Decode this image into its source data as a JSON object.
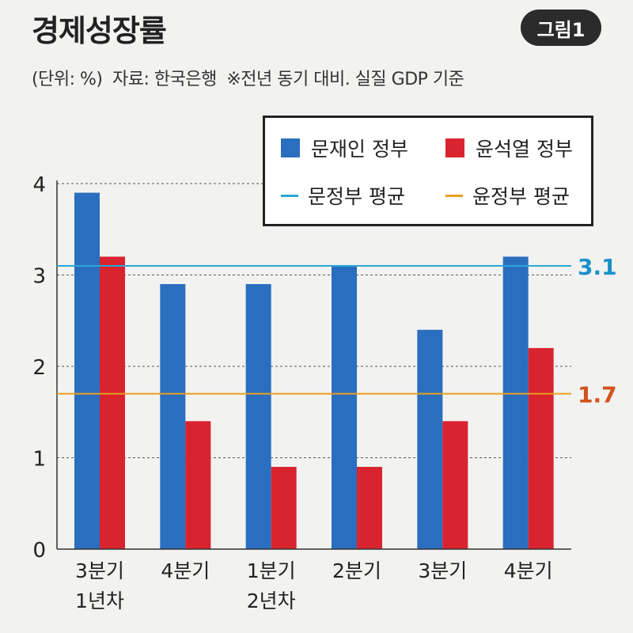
{
  "header": {
    "title": "경제성장률",
    "badge": "그림1",
    "unit_note": "(단위: %)",
    "source": "자료: 한국은행",
    "basis": "※전년 동기 대비. 실질 GDP 기준"
  },
  "colors": {
    "moon": "#2a6ebf",
    "yoon": "#d9232f",
    "moon_avg": "#2aa7d6",
    "yoon_avg": "#e8a020",
    "moon_avg_label": "#1a90c8",
    "yoon_avg_label": "#d2531c"
  },
  "chart_data": {
    "type": "bar",
    "categories": [
      [
        "3분기",
        "1년차"
      ],
      [
        "4분기"
      ],
      [
        "1분기",
        "2년차"
      ],
      [
        "2분기"
      ],
      [
        "3분기"
      ],
      [
        "4분기"
      ]
    ],
    "series": [
      {
        "name": "문재인 정부",
        "values": [
          3.9,
          2.9,
          2.9,
          3.1,
          2.4,
          3.2
        ]
      },
      {
        "name": "윤석열 정부",
        "values": [
          3.2,
          1.4,
          0.9,
          0.9,
          1.4,
          2.2
        ]
      }
    ],
    "reference_lines": [
      {
        "name": "문정부 평균",
        "value": 3.1,
        "label": "3.1"
      },
      {
        "name": "윤정부 평균",
        "value": 1.7,
        "label": "1.7"
      }
    ],
    "y_ticks": [
      "0",
      "1",
      "2",
      "3",
      "4"
    ],
    "ylim": [
      0,
      4
    ],
    "grid": "dashed",
    "legend_position": "top-right"
  },
  "legend": {
    "moon": "문재인 정부",
    "yoon": "윤석열 정부",
    "moon_avg": "문정부 평균",
    "yoon_avg": "윤정부 평균"
  }
}
